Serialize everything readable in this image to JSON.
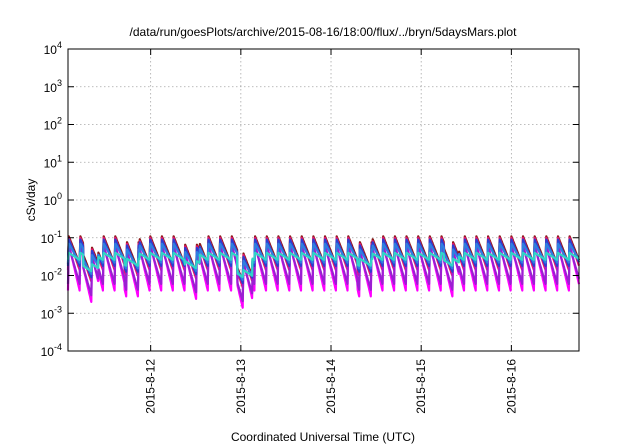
{
  "chart_data": {
    "type": "line",
    "title": "/data/run/goesPlots/archive/2015-08-16/18:00/flux/../bryn/5daysMars.plot",
    "xlabel": "Coordinated Universal Time (UTC)",
    "ylabel": "cSv/day",
    "y_scale": "log",
    "ylim": [
      0.0001,
      10000
    ],
    "y_ticks": [
      {
        "value": 0.0001,
        "base": "10",
        "exp": "-4"
      },
      {
        "value": 0.001,
        "base": "10",
        "exp": "-3"
      },
      {
        "value": 0.01,
        "base": "10",
        "exp": "-2"
      },
      {
        "value": 0.1,
        "base": "10",
        "exp": "-1"
      },
      {
        "value": 1,
        "base": "10",
        "exp": "0"
      },
      {
        "value": 10,
        "base": "10",
        "exp": "1"
      },
      {
        "value": 100,
        "base": "10",
        "exp": "2"
      },
      {
        "value": 1000,
        "base": "10",
        "exp": "3"
      },
      {
        "value": 10000,
        "base": "10",
        "exp": "4"
      }
    ],
    "x_unit": "days",
    "xlim": [
      "2015-08-11 02:00",
      "2015-08-16 18:00"
    ],
    "x_ticks": [
      {
        "label": "2015-8-12",
        "value": "2015-08-12 00:00"
      },
      {
        "label": "2015-8-13",
        "value": "2015-08-13 00:00"
      },
      {
        "label": "2015-8-14",
        "value": "2015-08-14 00:00"
      },
      {
        "label": "2015-8-15",
        "value": "2015-08-15 00:00"
      },
      {
        "label": "2015-8-16",
        "value": "2015-08-16 00:00"
      }
    ],
    "grid": true,
    "cycle_hours": 3.1,
    "series": [
      {
        "color": "#8b1a1a",
        "peak": 0.11,
        "trough": 0.02
      },
      {
        "color": "#e8116e",
        "peak": 0.1,
        "trough": 0.014
      },
      {
        "color": "#ff00ff",
        "peak": 0.07,
        "trough": 0.004
      },
      {
        "color": "#9b1fd2",
        "peak": 0.06,
        "trough": 0.006
      },
      {
        "color": "#2b3fcf",
        "peak": 0.09,
        "trough": 0.018
      },
      {
        "color": "#2f7fe0",
        "peak": 0.07,
        "trough": 0.022
      },
      {
        "color": "#2fd6c6",
        "peak": 0.04,
        "trough": 0.026
      }
    ],
    "dips": [
      {
        "at": "2015-08-11 08:00",
        "factor": 0.5
      },
      {
        "at": "2015-08-11 19:00",
        "factor": 0.7
      },
      {
        "at": "2015-08-12 11:00",
        "factor": 0.6
      },
      {
        "at": "2015-08-13 01:00",
        "factor": 0.35
      },
      {
        "at": "2015-08-14 09:00",
        "factor": 0.7
      },
      {
        "at": "2015-08-15 08:00",
        "factor": 0.7
      }
    ]
  }
}
